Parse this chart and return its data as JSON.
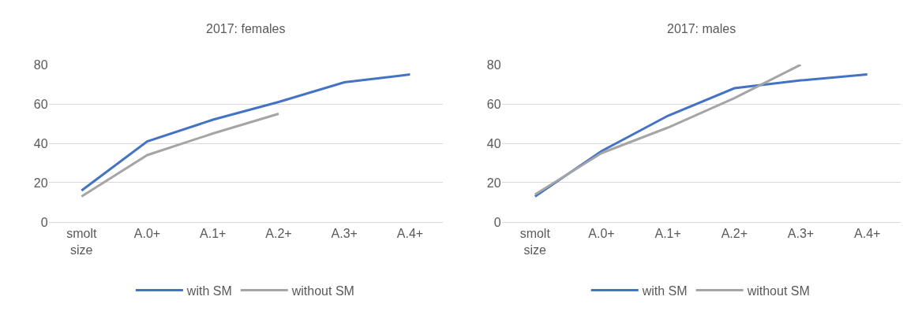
{
  "chart_data": [
    {
      "type": "line",
      "title": "2017: females",
      "categories": [
        "smolt size",
        "A.0+",
        "A.1+",
        "A.2+",
        "A.3+",
        "A.4+"
      ],
      "ylim": [
        0,
        80
      ],
      "yticks": [
        0,
        20,
        40,
        60,
        80
      ],
      "grid": "y",
      "legend": "bottom",
      "marker": "none",
      "line_style": "solid",
      "series": [
        {
          "name": "with SM",
          "color": "#4472c4",
          "values": [
            16,
            41,
            52,
            61,
            71,
            75
          ]
        },
        {
          "name": "without SM",
          "color": "#a5a5a5",
          "values": [
            13,
            34,
            45,
            55,
            null,
            null
          ]
        }
      ]
    },
    {
      "type": "line",
      "title": "2017: males",
      "categories": [
        "smolt size",
        "A.0+",
        "A.1+",
        "A.2+",
        "A.3+",
        "A.4+"
      ],
      "ylim": [
        0,
        80
      ],
      "yticks": [
        0,
        20,
        40,
        60,
        80
      ],
      "grid": "y",
      "legend": "bottom",
      "marker": "none",
      "line_style": "solid",
      "series": [
        {
          "name": "with SM",
          "color": "#4472c4",
          "values": [
            13,
            36,
            54,
            68,
            72,
            75
          ]
        },
        {
          "name": "without SM",
          "color": "#a5a5a5",
          "values": [
            14,
            35,
            48,
            63,
            80,
            null
          ]
        }
      ]
    }
  ]
}
